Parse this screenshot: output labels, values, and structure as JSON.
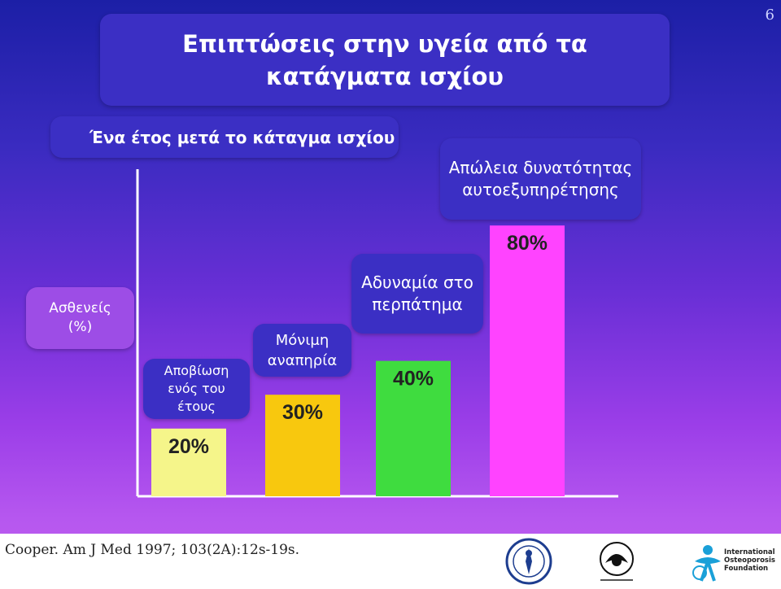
{
  "slide": {
    "page_number": "6",
    "title": "Επιπτώσεις στην υγεία από τα κατάγματα ισχίου"
  },
  "chart_data": {
    "type": "bar",
    "title": "Ένα έτος μετά το κάταγμα ισχίου",
    "ylabel": "Ασθενείς (%)",
    "ylim": [
      0,
      100
    ],
    "grid": false,
    "categories": [
      "Αποβίωση ενός του έτους",
      "Μόνιμη αναπηρία",
      "Αδυναμία στο περπάτημα",
      "Απώλεια δυνατότητας αυτοεξυπηρέτησης"
    ],
    "values": [
      20,
      30,
      40,
      80
    ],
    "value_labels": [
      "20%",
      "30%",
      "40%",
      "80%"
    ],
    "colors": [
      "#f5f58a",
      "#f8c80e",
      "#3fdc3f",
      "#ff43ff"
    ]
  },
  "footer": {
    "citation": "Cooper. Am J Med 1997; 103(2A):12s-19s.",
    "logos": [
      {
        "icon": "bone-joint-decade-logo"
      },
      {
        "icon": "isfr-logo"
      },
      {
        "icon": "iof-logo",
        "text": [
          "International",
          "Osteoporosis",
          "Foundation"
        ]
      }
    ]
  }
}
